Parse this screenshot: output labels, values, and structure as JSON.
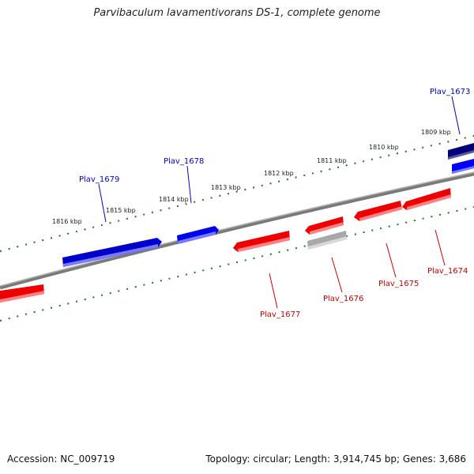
{
  "title": "Parvibaculum lavamentivorans DS-1, complete genome",
  "footer": {
    "accession": "Accession: NC_009719",
    "summary": "Topology: circular; Length: 3,914,745 bp; Genes: 3,686"
  },
  "kbp_labels": [
    "1809 kbp",
    "1810 kbp",
    "1811 kbp",
    "1812 kbp",
    "1813 kbp",
    "1814 kbp",
    "1815 kbp",
    "1816 kbp"
  ],
  "genes": [
    {
      "name": "Plav_1673",
      "strand": "forward",
      "color": "#0000cc"
    },
    {
      "name": "Plav_1674",
      "strand": "reverse",
      "color": "#cc0000"
    },
    {
      "name": "Plav_1675",
      "strand": "reverse",
      "color": "#cc0000"
    },
    {
      "name": "Plav_1676",
      "strand": "reverse",
      "color": "#cc0000"
    },
    {
      "name": "Plav_1677",
      "strand": "reverse",
      "color": "#cc0000"
    },
    {
      "name": "Plav_1678",
      "strand": "forward",
      "color": "#0000cc"
    },
    {
      "name": "Plav_1679",
      "strand": "forward",
      "color": "#0000cc"
    }
  ],
  "colors": {
    "forward": "#0000ff",
    "forward_dark": "#000080",
    "reverse": "#ff0000",
    "pseudo": "#b0b0b0",
    "backbone": "#808080",
    "ticks": "#006400"
  }
}
